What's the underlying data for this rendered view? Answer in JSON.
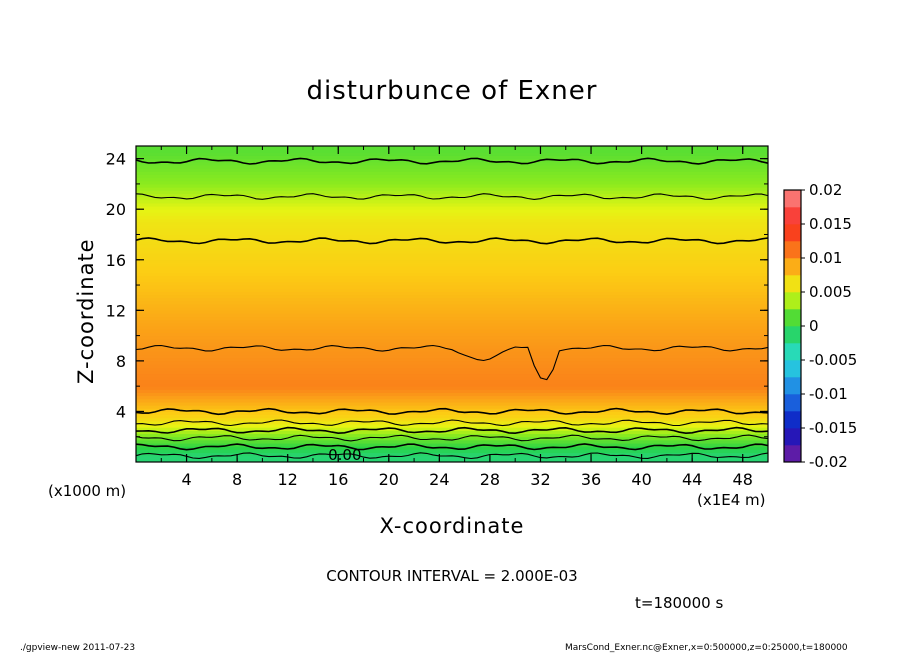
{
  "chart_data": {
    "type": "heatmap",
    "title": "disturbunce of Exner",
    "xlabel": "X-coordinate",
    "ylabel": "Z-coordinate",
    "x_unit": "(x1E4 m)",
    "y_unit": "(x1000 m)",
    "xlim": [
      0,
      50
    ],
    "ylim": [
      0,
      25
    ],
    "x_ticks": [
      "4",
      "8",
      "12",
      "16",
      "20",
      "24",
      "28",
      "32",
      "36",
      "40",
      "44",
      "48"
    ],
    "y_ticks": [
      "4",
      "8",
      "12",
      "16",
      "20",
      "24"
    ],
    "colorbar": {
      "min": -0.02,
      "max": 0.02,
      "labels": [
        "0.02",
        "0.015",
        "0.01",
        "0.005",
        "0",
        "-0.005",
        "-0.01",
        "-0.015",
        "-0.02"
      ]
    },
    "contour_line_label": "0.00",
    "contour_interval": "CONTOUR INTERVAL = 2.000E-03",
    "time": "t=180000 s",
    "approx_profile_by_z": [
      {
        "z": 0.5,
        "value": -0.0015
      },
      {
        "z": 1.5,
        "value": 0.001
      },
      {
        "z": 2.5,
        "value": 0.004
      },
      {
        "z": 3.5,
        "value": 0.007
      },
      {
        "z": 6.0,
        "value": 0.0105
      },
      {
        "z": 11.0,
        "value": 0.009
      },
      {
        "z": 15.0,
        "value": 0.0075
      },
      {
        "z": 19.0,
        "value": 0.006
      },
      {
        "z": 22.0,
        "value": 0.003
      },
      {
        "z": 24.5,
        "value": 0.0015
      }
    ]
  },
  "footer": {
    "left": "./gpview-new   2011-07-23",
    "right": "MarsCond_Exner.nc@Exner,x=0:500000,z=0:25000,t=180000"
  },
  "colors": {
    "band_orange_dark": "#f78a19",
    "band_orange": "#fbad1c",
    "band_yellow_orange": "#fcca12",
    "band_yellow": "#f8e911",
    "band_yellow_green": "#cdf016",
    "band_light_green": "#86ea1b",
    "band_green": "#3ee03a"
  }
}
